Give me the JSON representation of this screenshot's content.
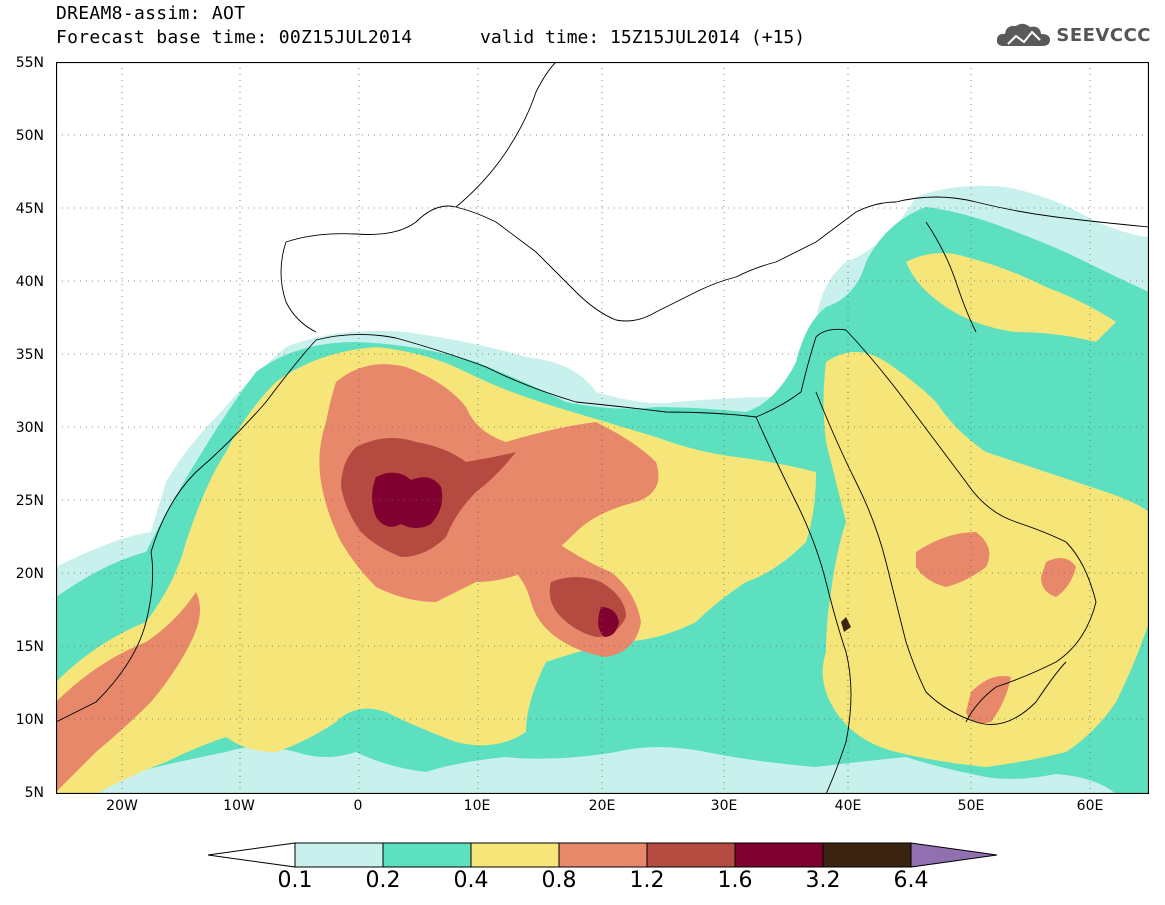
{
  "header": {
    "line1": "DREAM8-assim: AOT",
    "line2": "Forecast base time: 00Z15JUL2014",
    "valid": "valid time: 15Z15JUL2014 (+15)",
    "logo_text": "SEEVCCC"
  },
  "map": {
    "lat_labels": [
      "55N",
      "50N",
      "45N",
      "40N",
      "35N",
      "30N",
      "25N",
      "20N",
      "15N",
      "10N",
      "5N"
    ],
    "lon_labels": [
      "20W",
      "10W",
      "0",
      "10E",
      "20E",
      "30E",
      "40E",
      "50E",
      "60E"
    ],
    "lat_range": [
      5,
      55
    ],
    "lon_range": [
      -25,
      65
    ],
    "gridlines": true
  },
  "legend": {
    "labels": [
      "0.1",
      "0.2",
      "0.4",
      "0.8",
      "1.2",
      "1.6",
      "3.2",
      "6.4"
    ],
    "colors": [
      "#ffffff",
      "#c8f0ec",
      "#5ce0c0",
      "#f6e67a",
      "#e8886a",
      "#b44a40",
      "#800030",
      "#3a2410",
      "#9070b0"
    ]
  },
  "colors": {
    "c01": "#c8f0ec",
    "c02": "#5ce0c0",
    "c04": "#f6e67a",
    "c08": "#e8886a",
    "c12": "#b44a40",
    "c16": "#800030",
    "c32": "#3a2410"
  }
}
